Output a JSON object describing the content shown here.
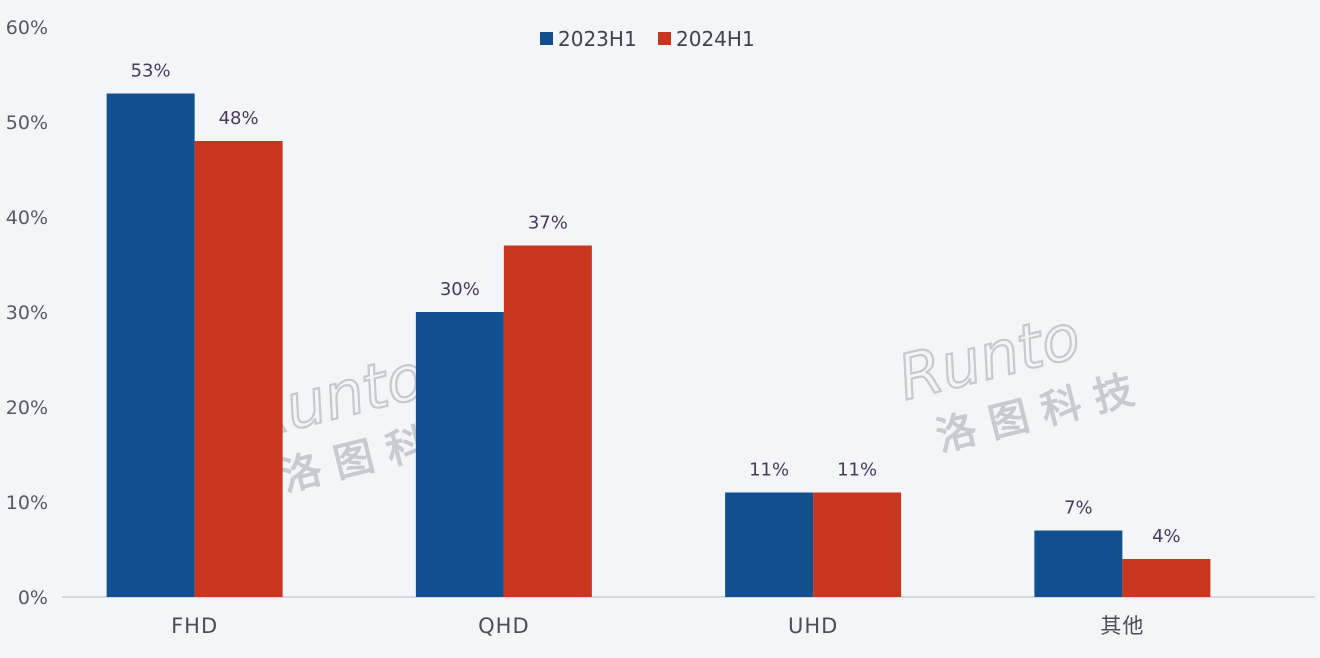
{
  "chart_data": {
    "type": "bar",
    "categories": [
      "FHD",
      "QHD",
      "UHD",
      "其他"
    ],
    "series": [
      {
        "name": "2023H1",
        "values": [
          53,
          30,
          11,
          7
        ],
        "labels": [
          "53%",
          "30%",
          "11%",
          "7%"
        ],
        "color": "#114f8f"
      },
      {
        "name": "2024H1",
        "values": [
          48,
          37,
          11,
          4
        ],
        "labels": [
          "48%",
          "37%",
          "11%",
          "4%"
        ],
        "color": "#c8361f"
      }
    ],
    "ylim": [
      0,
      60
    ],
    "yticks": [
      0,
      10,
      20,
      30,
      40,
      50,
      60
    ],
    "ytick_labels": [
      "0%",
      "10%",
      "20%",
      "30%",
      "40%",
      "50%",
      "60%"
    ],
    "grid": false,
    "legend_position": "top-center"
  },
  "watermark": {
    "latin": "Runto",
    "cjk": "洛 图 科 技"
  }
}
